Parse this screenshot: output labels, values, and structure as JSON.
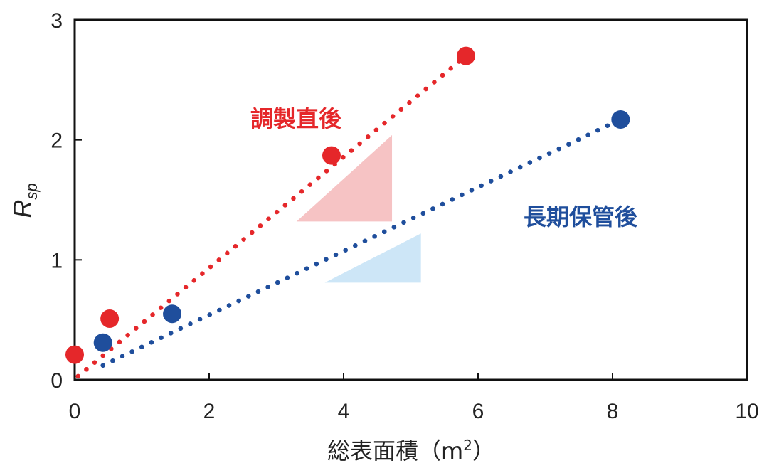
{
  "chart_data": {
    "type": "scatter",
    "title": "",
    "xlabel": "総表面積（m",
    "xlabel_superscript": "2",
    "xlabel_close": "）",
    "ylabel": "R",
    "ylabel_subscript": "sp",
    "xlim": [
      0,
      10
    ],
    "ylim": [
      0,
      3
    ],
    "xticks": [
      0,
      2,
      4,
      6,
      8,
      10
    ],
    "yticks": [
      0,
      1,
      2,
      3
    ],
    "xtick_labels": [
      "0",
      "2",
      "4",
      "6",
      "8",
      "10"
    ],
    "ytick_labels": [
      "0",
      "1",
      "2",
      "3"
    ],
    "grid": false,
    "series": [
      {
        "name": "調製直後",
        "color": "#e5272a",
        "fill_color": "#f6c3c4",
        "points": [
          {
            "x": 0.0,
            "y": 0.21
          },
          {
            "x": 0.52,
            "y": 0.51
          },
          {
            "x": 3.82,
            "y": 1.87
          },
          {
            "x": 5.82,
            "y": 2.7
          }
        ],
        "trend": {
          "x": [
            0.05,
            5.82
          ],
          "y": [
            0.03,
            2.7
          ]
        },
        "slope_triangle": {
          "x": [
            3.3,
            4.72,
            4.72
          ],
          "y": [
            1.32,
            1.32,
            2.04
          ]
        }
      },
      {
        "name": "長期保管後",
        "color": "#1f4e9c",
        "fill_color": "#cde6f7",
        "points": [
          {
            "x": 0.42,
            "y": 0.31
          },
          {
            "x": 1.45,
            "y": 0.55
          },
          {
            "x": 8.12,
            "y": 2.17
          }
        ],
        "trend": {
          "x": [
            0.42,
            8.12
          ],
          "y": [
            0.12,
            2.17
          ]
        },
        "slope_triangle": {
          "x": [
            3.72,
            5.15,
            5.15
          ],
          "y": [
            0.81,
            0.81,
            1.22
          ]
        }
      }
    ]
  }
}
